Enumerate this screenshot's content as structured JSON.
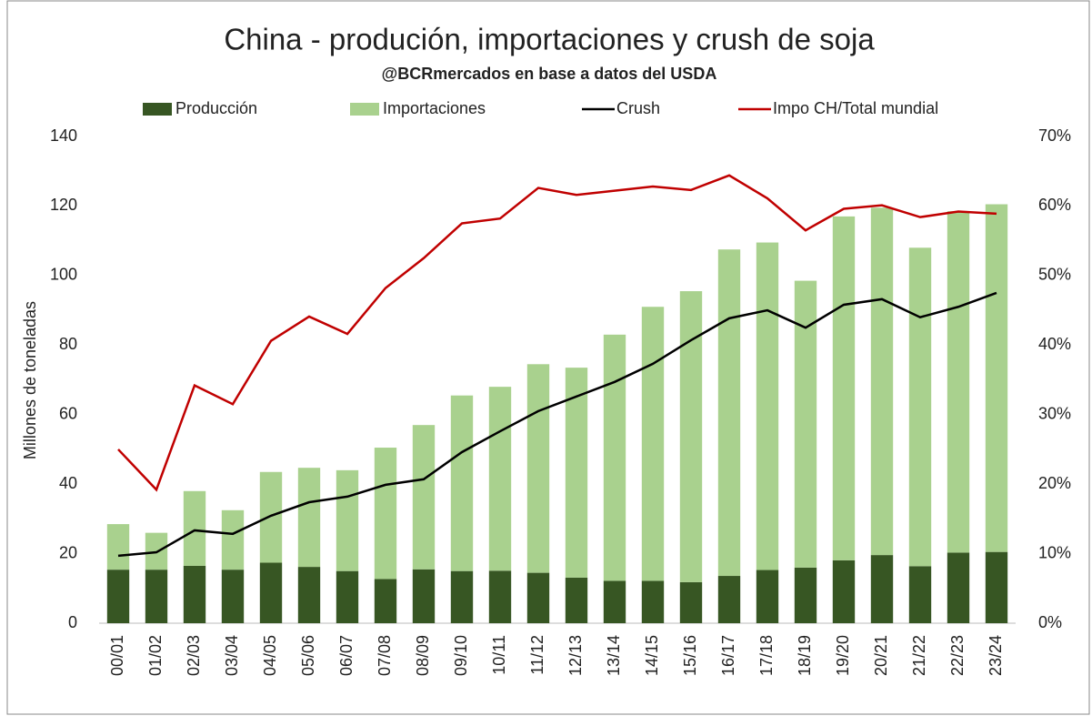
{
  "chart_data": {
    "type": "bar",
    "title": "China - produción, importaciones y crush de soja",
    "subtitle": "@BCRmercados en base a datos del USDA",
    "y_label": "Millones de toneladas",
    "categories": [
      "00/01",
      "01/02",
      "02/03",
      "03/04",
      "04/05",
      "05/06",
      "06/07",
      "07/08",
      "08/09",
      "09/10",
      "10/11",
      "11/12",
      "12/13",
      "13/14",
      "14/15",
      "15/16",
      "16/17",
      "17/18",
      "18/19",
      "19/20",
      "20/21",
      "21/22",
      "22/23",
      "23/24"
    ],
    "series": [
      {
        "name": "Producción",
        "type": "bar",
        "color": "#375623",
        "values": [
          15.4,
          15.4,
          16.5,
          15.4,
          17.4,
          16.2,
          15.0,
          12.7,
          15.5,
          15.0,
          15.1,
          14.5,
          13.1,
          12.2,
          12.2,
          11.8,
          13.6,
          15.3,
          16.0,
          18.1,
          19.6,
          16.4,
          20.3,
          20.5
        ]
      },
      {
        "name": "Importaciones",
        "type": "bar",
        "color": "#a9d18e",
        "values": [
          13.1,
          10.6,
          21.5,
          17.1,
          26.1,
          28.5,
          29.0,
          37.8,
          41.5,
          50.5,
          52.9,
          60.0,
          60.4,
          70.8,
          78.8,
          83.7,
          93.9,
          94.2,
          82.5,
          98.9,
          99.9,
          91.6,
          98.2,
          100.0
        ]
      },
      {
        "name": "Crush",
        "type": "line",
        "color": "#000000",
        "values": [
          19.4,
          20.4,
          26.7,
          25.7,
          30.9,
          34.8,
          36.4,
          39.8,
          41.4,
          49.2,
          55.2,
          61.0,
          65.2,
          69.4,
          74.6,
          81.4,
          87.7,
          90.0,
          85.0,
          91.6,
          93.2,
          88.0,
          91.0,
          95.0
        ]
      },
      {
        "name": "Impo CH/Total mundial",
        "type": "line",
        "axis": "y2",
        "color": "#c00000",
        "values": [
          25.0,
          19.2,
          34.2,
          31.5,
          40.6,
          44.1,
          41.6,
          48.2,
          52.5,
          57.5,
          58.2,
          62.6,
          61.6,
          62.2,
          62.8,
          62.3,
          64.4,
          61.1,
          56.5,
          59.6,
          60.1,
          58.4,
          59.2,
          58.9
        ]
      }
    ],
    "ylim": [
      0,
      140
    ],
    "yticks": [
      0,
      20,
      40,
      60,
      80,
      100,
      120,
      140
    ],
    "y2lim": [
      0,
      70
    ],
    "y2ticks": [
      {
        "value": 0,
        "label": "0%"
      },
      {
        "value": 10,
        "label": "10%"
      },
      {
        "value": 20,
        "label": "20%"
      },
      {
        "value": 30,
        "label": "30%"
      },
      {
        "value": 40,
        "label": "40%"
      },
      {
        "value": 50,
        "label": "50%"
      },
      {
        "value": 60,
        "label": "60%"
      },
      {
        "value": 70,
        "label": "70%"
      }
    ],
    "grid": false,
    "legend": "top"
  }
}
